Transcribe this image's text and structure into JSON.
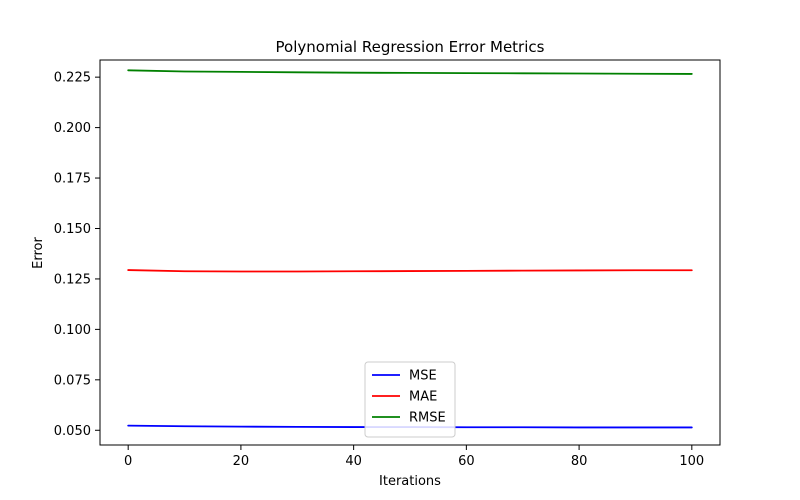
{
  "chart_data": {
    "type": "line",
    "title": "Polynomial Regression Error Metrics",
    "xlabel": "Iterations",
    "ylabel": "Error",
    "xlim": [
      -5,
      105
    ],
    "ylim": [
      0.0427,
      0.2335
    ],
    "xticks": [
      0,
      20,
      40,
      60,
      80,
      100
    ],
    "yticks": [
      0.05,
      0.075,
      0.1,
      0.125,
      0.15,
      0.175,
      0.2,
      0.225
    ],
    "ytick_labels": [
      "0.050",
      "0.075",
      "0.100",
      "0.125",
      "0.150",
      "0.175",
      "0.200",
      "0.225"
    ],
    "grid": false,
    "legend_position": "bottom-center",
    "x": [
      0,
      10,
      20,
      30,
      40,
      50,
      60,
      70,
      80,
      90,
      100
    ],
    "series": [
      {
        "name": "MSE",
        "color": "#0000ff",
        "values": [
          0.0523,
          0.052,
          0.0518,
          0.0517,
          0.0516,
          0.0516,
          0.0515,
          0.0515,
          0.0514,
          0.0514,
          0.0514
        ]
      },
      {
        "name": "MAE",
        "color": "#ff0000",
        "values": [
          0.1294,
          0.1288,
          0.1287,
          0.1287,
          0.1288,
          0.1289,
          0.129,
          0.1291,
          0.1292,
          0.1293,
          0.1293
        ]
      },
      {
        "name": "RMSE",
        "color": "#008000",
        "values": [
          0.2284,
          0.2278,
          0.2276,
          0.2274,
          0.2272,
          0.2271,
          0.227,
          0.2269,
          0.2268,
          0.2267,
          0.2266
        ]
      }
    ]
  }
}
